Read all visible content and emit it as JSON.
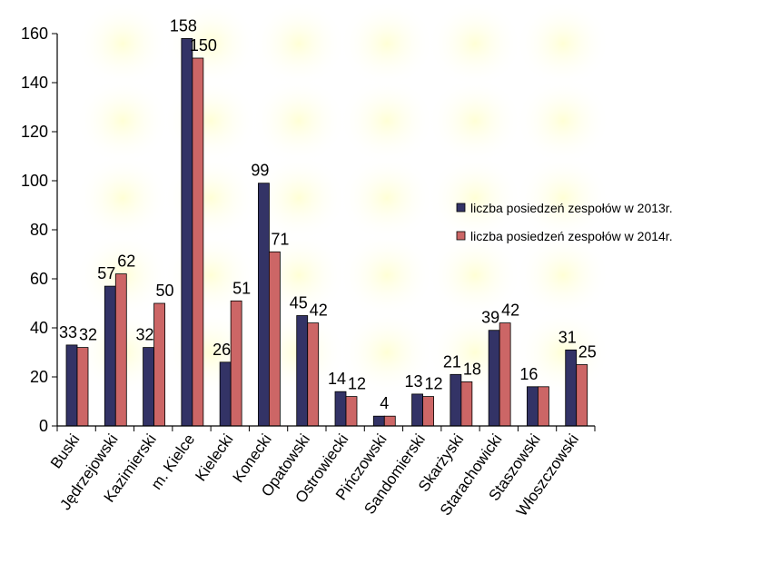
{
  "chart_data": {
    "type": "bar",
    "categories": [
      "Buski",
      "Jędrzejowski",
      "Kazimierski",
      "m. Kielce",
      "Kielecki",
      "Konecki",
      "Opatowski",
      "Ostrowiecki",
      "Pińczowski",
      "Sandomierski",
      "Skarżyski",
      "Starachowicki",
      "Staszowski",
      "Włoszczowski"
    ],
    "series": [
      {
        "name": "liczba posiedzeń zespołów  w  2013r.",
        "color": "#333366",
        "values": [
          33,
          57,
          32,
          158,
          26,
          99,
          45,
          14,
          4,
          13,
          21,
          39,
          16,
          31
        ]
      },
      {
        "name": "liczba posiedzeń zespołów  w  2014r.",
        "color": "#CC6666",
        "values": [
          32,
          62,
          50,
          150,
          51,
          71,
          42,
          12,
          4,
          12,
          18,
          42,
          16,
          25
        ]
      }
    ],
    "data_labels": [
      [
        "33",
        "57",
        "32",
        "158",
        "26",
        "99",
        "45",
        "14",
        "4",
        "13",
        "21",
        "39",
        "16",
        "31"
      ],
      [
        "32",
        "62",
        "50",
        "150",
        "51",
        "71",
        "42",
        "12",
        "",
        "12",
        "18",
        "42",
        "",
        "25"
      ]
    ],
    "ylim": [
      0,
      160
    ],
    "yticks": [
      "0",
      "20",
      "40",
      "60",
      "80",
      "100",
      "120",
      "140",
      "160"
    ],
    "legend_position": "right",
    "grid": false
  }
}
